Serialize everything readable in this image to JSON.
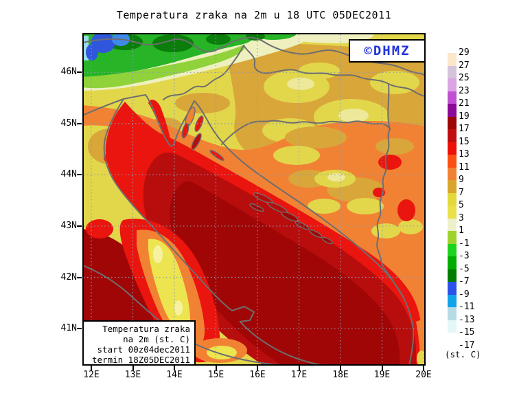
{
  "title": "Temperatura zraka na 2m u 18 UTC 05DEC2011",
  "watermark": {
    "label": "©DHMZ",
    "color": "#2233dd"
  },
  "info_box": {
    "line1": "Temperatura zraka",
    "line2": "na 2m (st. C)",
    "line3": "start 00z04dec2011",
    "line4": "termin 18Z05DEC2011"
  },
  "axes": {
    "lat": [
      "46N",
      "45N",
      "44N",
      "43N",
      "42N",
      "41N"
    ],
    "lon": [
      "12E",
      "13E",
      "14E",
      "15E",
      "16E",
      "17E",
      "18E",
      "19E",
      "20E"
    ]
  },
  "colorbar": {
    "unit": "(st. C)",
    "labels": [
      "29",
      "27",
      "25",
      "23",
      "21",
      "19",
      "17",
      "15",
      "13",
      "11",
      "9",
      "7",
      "5",
      "3",
      "1",
      "-1",
      "-3",
      "-5",
      "-7",
      "-9",
      "-11",
      "-13",
      "-15",
      "-17"
    ],
    "colors": [
      "#fbe7cc",
      "#d4c5da",
      "#dba4e3",
      "#c050d2",
      "#8c0a96",
      "#9c0505",
      "#c00d0d",
      "#ec1009",
      "#fd4f14",
      "#f28233",
      "#d9a52b",
      "#e4d93c",
      "#e9e04a",
      "#edf0cb",
      "#9ed32e",
      "#1ed31e",
      "#00ad00",
      "#007d00",
      "#2b52e8",
      "#11a3e8",
      "#b7dbe4",
      "#e4f7f7",
      "#ffffff"
    ]
  },
  "chart_data": {
    "type": "heatmap",
    "title": "Temperatura zraka na 2m u 18 UTC 05DEC2011",
    "variable": "Temperatura zraka na 2m (st. C)",
    "run": "start 00z04dec2011",
    "valid": "termin 18Z05DEC2011",
    "x_ticks": [
      "12E",
      "13E",
      "14E",
      "15E",
      "16E",
      "17E",
      "18E",
      "19E",
      "20E"
    ],
    "y_ticks": [
      "46N",
      "45N",
      "44N",
      "43N",
      "42N",
      "41N"
    ],
    "legend_position": "right",
    "grid": true,
    "legend_levels_c": [
      29,
      27,
      25,
      23,
      21,
      19,
      17,
      15,
      13,
      11,
      9,
      7,
      5,
      3,
      1,
      -1,
      -3,
      -5,
      -7,
      -9,
      -11,
      -13,
      -15,
      -17
    ],
    "legend_colors": [
      "#fbe7cc",
      "#d4c5da",
      "#dba4e3",
      "#c050d2",
      "#8c0a96",
      "#9c0505",
      "#c00d0d",
      "#ec1009",
      "#fd4f14",
      "#f28233",
      "#d9a52b",
      "#e4d93c",
      "#e9e04a",
      "#edf0cb",
      "#9ed32e",
      "#1ed31e",
      "#00ad00",
      "#007d00",
      "#2b52e8",
      "#11a3e8",
      "#b7dbe4",
      "#e4f7f7",
      "#ffffff"
    ],
    "source_watermark": "©DHMZ"
  }
}
